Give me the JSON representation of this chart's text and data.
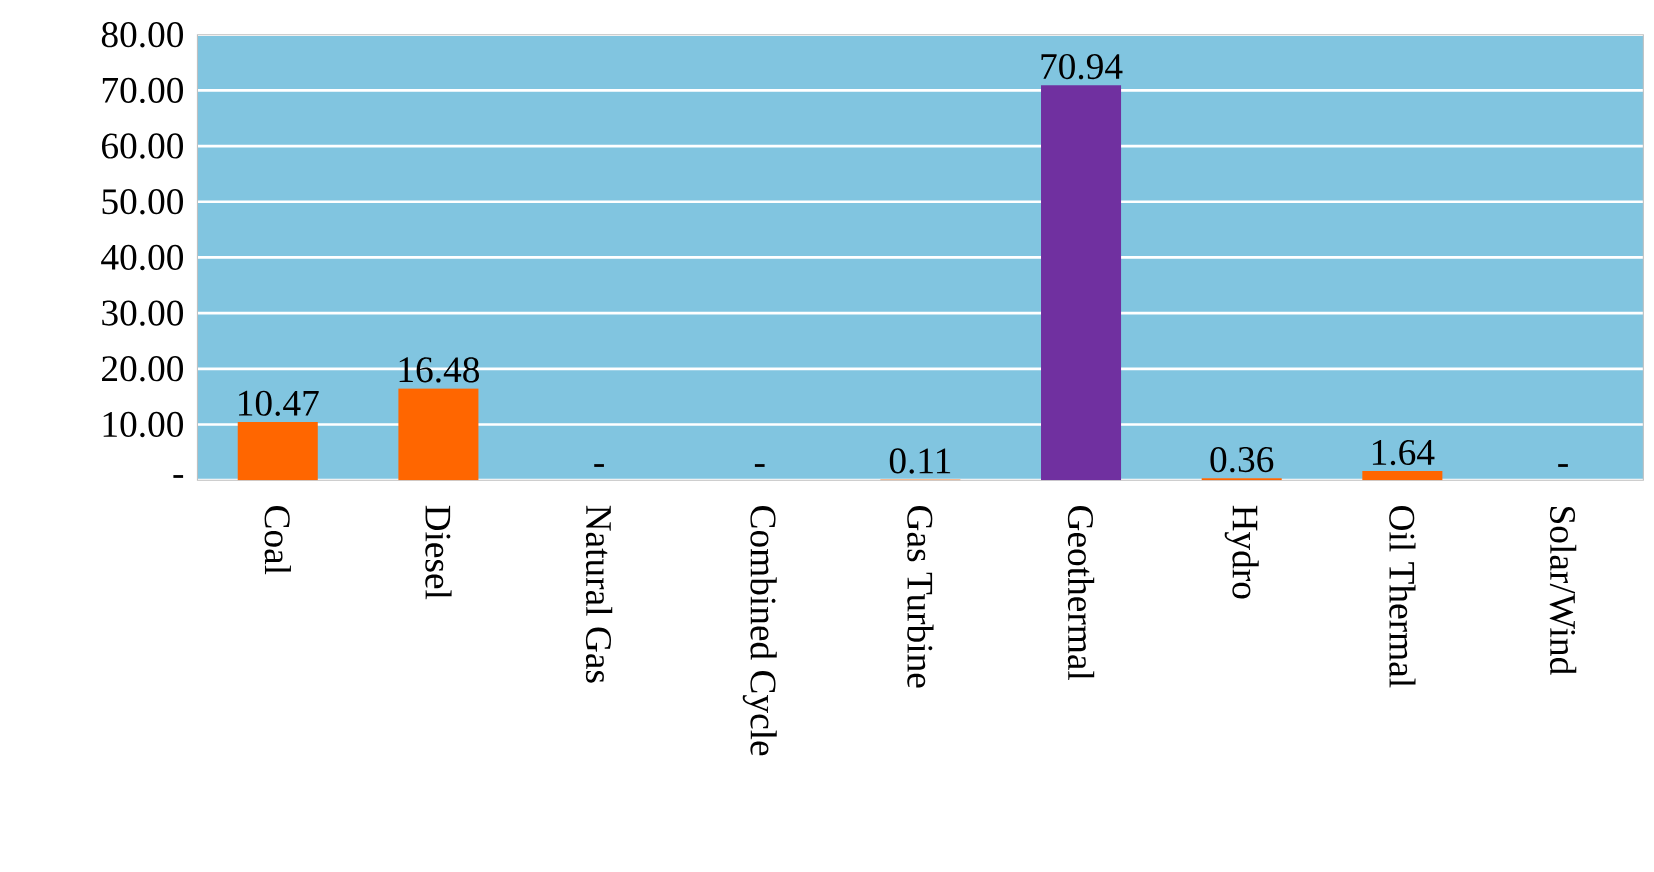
{
  "chart_data": {
    "type": "bar",
    "categories": [
      "Coal",
      "Diesel",
      "Natural Gas",
      "Combined Cycle",
      "Gas Turbine",
      "Geothermal",
      "Hydro",
      "Oil Thermal",
      "Solar/Wind"
    ],
    "values": [
      10.47,
      16.48,
      0,
      0,
      0.11,
      70.94,
      0.36,
      1.64,
      0
    ],
    "value_labels": [
      "10.47",
      "16.48",
      "-",
      "-",
      "0.11",
      "70.94",
      "0.36",
      "1.64",
      "-"
    ],
    "colors": [
      "#ff6600",
      "#ff6600",
      "#ff6600",
      "#ff6600",
      "#ff6600",
      "#7030a0",
      "#ff6600",
      "#ff6600",
      "#ff6600"
    ],
    "ylim": [
      0,
      80
    ],
    "yticks": [
      {
        "value": 0,
        "label": "-"
      },
      {
        "value": 10,
        "label": "10.00"
      },
      {
        "value": 20,
        "label": "20.00"
      },
      {
        "value": 30,
        "label": "30.00"
      },
      {
        "value": 40,
        "label": "40.00"
      },
      {
        "value": 50,
        "label": "50.00"
      },
      {
        "value": 60,
        "label": "60.00"
      },
      {
        "value": 70,
        "label": "70.00"
      },
      {
        "value": 80,
        "label": "80.00"
      }
    ],
    "grid": "y"
  }
}
